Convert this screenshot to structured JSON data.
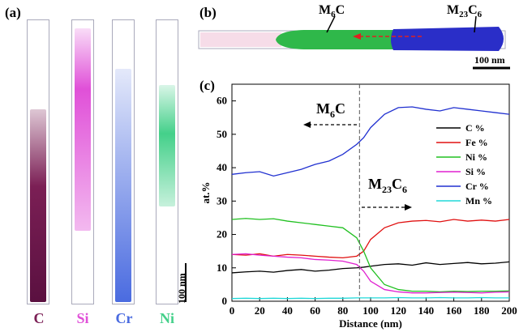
{
  "panel_a": {
    "label": "(a)",
    "columns": [
      {
        "element": "C",
        "color": "#7b1f55"
      },
      {
        "element": "Si",
        "color": "#e050d8"
      },
      {
        "element": "Cr",
        "color": "#4a6be0"
      },
      {
        "element": "Ni",
        "color": "#44d08a"
      }
    ],
    "scale_label": "100 nm"
  },
  "panel_b": {
    "label": "(b)",
    "phase_left": "M6C",
    "phase_right": "M23C6",
    "scale_label": "100 nm",
    "colors": {
      "m6c": "#2fb84a",
      "m23c6": "#2a2ec8",
      "arrow": "#e02020"
    }
  },
  "panel_c": {
    "label": "(c)",
    "annotation_left": "M6C",
    "annotation_right": "M23C6"
  },
  "chart_data": {
    "type": "line",
    "xlabel": "Distance (nm)",
    "ylabel": "at.%",
    "xlim": [
      0,
      200
    ],
    "ylim": [
      0,
      65
    ],
    "xticks": [
      0,
      20,
      40,
      60,
      80,
      100,
      120,
      140,
      160,
      180,
      200
    ],
    "yticks": [
      0,
      10,
      20,
      30,
      40,
      50,
      60
    ],
    "boundary_x": 92,
    "legend_position": "right",
    "x": [
      0,
      10,
      20,
      30,
      40,
      50,
      60,
      70,
      80,
      90,
      95,
      100,
      110,
      120,
      130,
      140,
      150,
      160,
      170,
      180,
      190,
      200
    ],
    "series": [
      {
        "name": "C %",
        "color": "#000000",
        "values": [
          8.5,
          8.8,
          9.0,
          8.7,
          9.2,
          9.5,
          9.0,
          9.3,
          9.8,
          10.0,
          10.2,
          10.5,
          11.0,
          11.2,
          10.8,
          11.5,
          11.0,
          11.3,
          11.6,
          11.2,
          11.4,
          11.8
        ]
      },
      {
        "name": "Fe %",
        "color": "#e01010",
        "values": [
          14.0,
          13.8,
          14.2,
          13.5,
          14.0,
          13.8,
          13.5,
          13.2,
          13.0,
          13.5,
          15.0,
          18.5,
          22.0,
          23.5,
          24.0,
          24.2,
          23.8,
          24.5,
          24.0,
          24.3,
          24.0,
          24.5
        ]
      },
      {
        "name": "Ni %",
        "color": "#20c020",
        "values": [
          24.5,
          24.8,
          24.5,
          24.7,
          24.0,
          23.5,
          23.0,
          22.5,
          22.0,
          19.0,
          15.0,
          10.0,
          5.0,
          3.5,
          3.0,
          3.0,
          2.8,
          3.0,
          2.9,
          3.0,
          3.0,
          3.1
        ]
      },
      {
        "name": "Si %",
        "color": "#e020d0",
        "values": [
          14.0,
          14.2,
          13.8,
          13.5,
          13.2,
          13.0,
          12.5,
          12.3,
          12.0,
          11.0,
          9.0,
          6.0,
          3.5,
          2.8,
          2.5,
          2.5,
          2.6,
          2.7,
          2.6,
          2.5,
          2.7,
          2.8
        ]
      },
      {
        "name": "Cr %",
        "color": "#2030d0",
        "values": [
          38.0,
          38.5,
          38.8,
          37.5,
          38.5,
          39.5,
          41.0,
          42.0,
          44.0,
          47.0,
          49.0,
          52.0,
          56.0,
          58.0,
          58.2,
          57.5,
          57.0,
          58.0,
          57.5,
          57.0,
          56.5,
          56.0
        ]
      },
      {
        "name": "Mn %",
        "color": "#20d8d8",
        "values": [
          0.8,
          0.9,
          0.8,
          0.9,
          0.8,
          0.9,
          0.8,
          0.9,
          0.9,
          1.0,
          1.0,
          1.0,
          1.0,
          1.1,
          1.0,
          1.0,
          1.1,
          1.0,
          1.0,
          1.1,
          1.0,
          1.0
        ]
      }
    ]
  }
}
